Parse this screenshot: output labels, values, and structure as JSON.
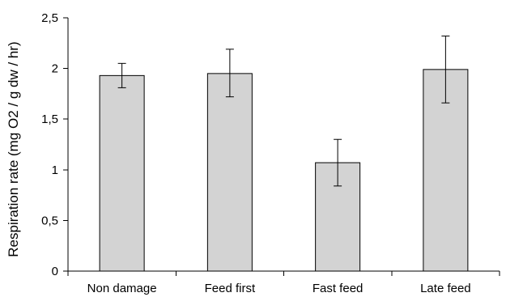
{
  "chart_data": {
    "type": "bar",
    "title": "",
    "xlabel": "",
    "ylabel": "Respiration rate (mg O2 / g dw / hr)",
    "categories": [
      "Non damage",
      "Feed first",
      "Fast feed",
      "Late feed"
    ],
    "values": [
      1.93,
      1.95,
      1.07,
      1.99
    ],
    "error_low": [
      1.81,
      1.72,
      0.84,
      1.66
    ],
    "error_high": [
      2.05,
      2.19,
      1.3,
      2.32
    ],
    "ylim": [
      0,
      2.5
    ],
    "yticks": [
      0,
      0.5,
      1,
      1.5,
      2,
      2.5
    ],
    "ytick_labels": [
      "0",
      "0,5",
      "1",
      "1,5",
      "2",
      "2,5"
    ],
    "grid": false,
    "legend": "none",
    "colors": {
      "bar_fill": "#d3d3d3",
      "bar_stroke": "#000000",
      "error_bar": "#000000"
    }
  }
}
